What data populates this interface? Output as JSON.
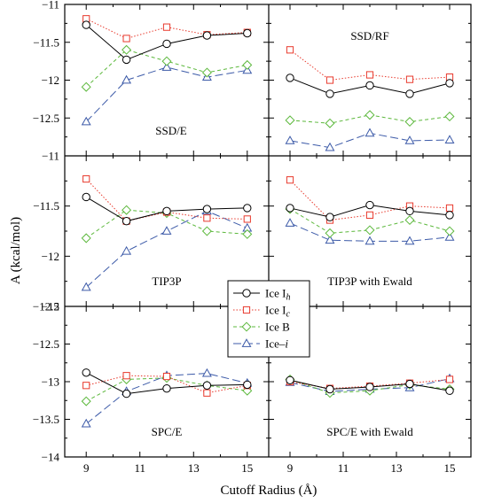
{
  "chart_data": {
    "type": "line",
    "xlabel": "Cutoff Radius (Å)",
    "ylabel": "A (kcal/mol)",
    "x": [
      9,
      10.5,
      12,
      13.5,
      15
    ],
    "x_ticks": [
      "9",
      "11",
      "13",
      "15"
    ],
    "x_tick_values": [
      9,
      11,
      13,
      15
    ],
    "xlim": [
      8.2,
      15.8
    ],
    "series_styles": [
      {
        "name": "Ice I",
        "subscript": "h",
        "color": "#000000",
        "marker": "circle",
        "dash": "solid"
      },
      {
        "name": "Ice I",
        "subscript": "c",
        "color": "#e8392c",
        "marker": "square",
        "dash": "dotted"
      },
      {
        "name": "Ice B",
        "subscript": "",
        "color": "#5cb83c",
        "marker": "diamond",
        "dash": "dashed"
      },
      {
        "name": "Ice–i",
        "subscript": "",
        "color": "#3c5aa8",
        "marker": "triangle",
        "dash": "longdash"
      }
    ],
    "legend": {
      "entries": [
        {
          "main": "Ice I",
          "sub": "h"
        },
        {
          "main": "Ice I",
          "sub": "c"
        },
        {
          "main": "Ice B",
          "sub": ""
        },
        {
          "main": "Ice–",
          "sub": "",
          "italic": "i"
        }
      ],
      "placement": "center"
    },
    "rows": [
      {
        "ylim": [
          -11,
          -13
        ],
        "y_ticks": [
          "-11",
          "-11.5",
          "-12",
          "-12.5"
        ],
        "y_tick_values": [
          -11,
          -11.5,
          -12,
          -12.5
        ]
      },
      {
        "ylim": [
          -11,
          -12.5
        ],
        "y_ticks": [
          "-11",
          "-11.5",
          "-12",
          "-12.5"
        ],
        "y_tick_values": [
          -11,
          -11.5,
          -12,
          -12.5
        ]
      },
      {
        "ylim": [
          -12,
          -14
        ],
        "y_ticks": [
          "-12",
          "-12.5",
          "-13",
          "-13.5",
          "-14"
        ],
        "y_tick_values": [
          -12,
          -12.5,
          -13,
          -13.5,
          -14
        ]
      }
    ],
    "panels": [
      {
        "title": "SSD/E",
        "row": 0,
        "col": 0,
        "series": [
          {
            "values": [
              -11.27,
              -11.73,
              -11.52,
              -11.41,
              -11.38
            ]
          },
          {
            "values": [
              -11.19,
              -11.45,
              -11.3,
              -11.4,
              -11.37
            ]
          },
          {
            "values": [
              -12.09,
              -11.6,
              -11.75,
              -11.9,
              -11.8
            ]
          },
          {
            "values": [
              -12.55,
              -12.0,
              -11.83,
              -11.96,
              -11.87
            ]
          }
        ]
      },
      {
        "title": "SSD/RF",
        "row": 0,
        "col": 1,
        "series": [
          {
            "values": [
              -11.97,
              -12.18,
              -12.07,
              -12.18,
              -12.04
            ]
          },
          {
            "values": [
              -11.6,
              -12.0,
              -11.93,
              -11.99,
              -11.96
            ]
          },
          {
            "values": [
              -12.53,
              -12.57,
              -12.46,
              -12.55,
              -12.48
            ]
          },
          {
            "values": [
              -12.8,
              -12.89,
              -12.7,
              -12.8,
              -12.79
            ]
          }
        ]
      },
      {
        "title": "TIP3P",
        "row": 1,
        "col": 0,
        "series": [
          {
            "values": [
              -11.41,
              -11.65,
              -11.55,
              -11.53,
              -11.52
            ]
          },
          {
            "values": [
              -11.23,
              -11.65,
              -11.56,
              -11.62,
              -11.63
            ]
          },
          {
            "values": [
              -11.82,
              -11.54,
              -11.57,
              -11.75,
              -11.78
            ]
          },
          {
            "values": [
              -12.31,
              -11.95,
              -11.75,
              -11.55,
              -11.72
            ]
          }
        ]
      },
      {
        "title": "TIP3P with Ewald",
        "row": 1,
        "col": 1,
        "series": [
          {
            "values": [
              -11.52,
              -11.61,
              -11.49,
              -11.55,
              -11.59
            ]
          },
          {
            "values": [
              -11.24,
              -11.64,
              -11.59,
              -11.5,
              -11.52
            ]
          },
          {
            "values": [
              -11.53,
              -11.77,
              -11.74,
              -11.64,
              -11.75
            ]
          },
          {
            "values": [
              -11.67,
              -11.84,
              -11.85,
              -11.85,
              -11.81
            ]
          }
        ]
      },
      {
        "title": "SPC/E",
        "row": 2,
        "col": 0,
        "series": [
          {
            "values": [
              -12.88,
              -13.16,
              -13.09,
              -13.05,
              -13.04
            ]
          },
          {
            "values": [
              -13.05,
              -12.92,
              -12.93,
              -13.15,
              -13.05
            ]
          },
          {
            "values": [
              -13.26,
              -12.97,
              -12.95,
              -13.05,
              -13.12
            ]
          },
          {
            "values": [
              -13.56,
              -13.13,
              -12.92,
              -12.89,
              -13.02
            ]
          }
        ]
      },
      {
        "title": "SPC/E with Ewald",
        "row": 2,
        "col": 1,
        "series": [
          {
            "values": [
              -12.98,
              -13.1,
              -13.07,
              -13.03,
              -13.12
            ]
          },
          {
            "values": [
              -13.0,
              -13.09,
              -13.06,
              -13.02,
              -12.97
            ]
          },
          {
            "values": [
              -12.97,
              -13.15,
              -13.12,
              -13.04,
              -13.1
            ]
          },
          {
            "values": [
              -13.01,
              -13.13,
              -13.1,
              -13.08,
              -12.96
            ]
          }
        ]
      }
    ]
  }
}
